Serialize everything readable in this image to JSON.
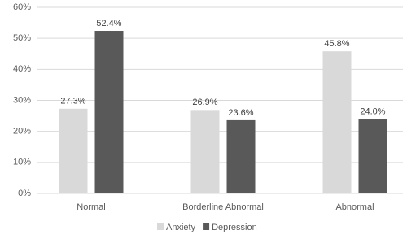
{
  "chart_data": {
    "type": "bar",
    "categories": [
      "Normal",
      "Borderline Abnormal",
      "Abnormal"
    ],
    "series": [
      {
        "name": "Anxiety",
        "color": "#d9d9d9",
        "values": [
          27.3,
          26.9,
          45.8
        ],
        "value_labels": [
          "27.3%",
          "26.9%",
          "45.8%"
        ]
      },
      {
        "name": "Depression",
        "color": "#595959",
        "values": [
          52.4,
          23.6,
          24.0
        ],
        "value_labels": [
          "52.4%",
          "23.6%",
          "24.0%"
        ]
      }
    ],
    "ylim": [
      0,
      60
    ],
    "yticks": [
      {
        "value": 0,
        "label": "0%"
      },
      {
        "value": 10,
        "label": "10%"
      },
      {
        "value": 20,
        "label": "20%"
      },
      {
        "value": 30,
        "label": "30%"
      },
      {
        "value": 40,
        "label": "40%"
      },
      {
        "value": 50,
        "label": "50%"
      },
      {
        "value": 60,
        "label": "60%"
      }
    ],
    "grid": true,
    "legend": "bottom"
  }
}
